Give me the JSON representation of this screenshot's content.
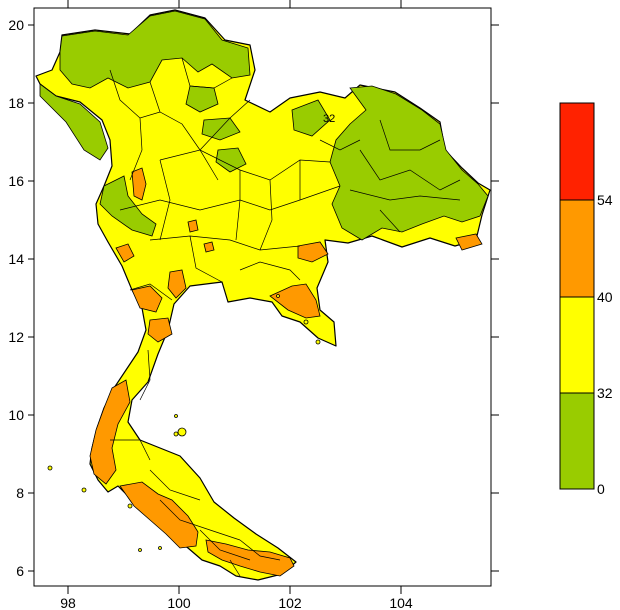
{
  "map": {
    "x_ticks": [
      "98",
      "100",
      "102",
      "104"
    ],
    "y_ticks": [
      "20",
      "18",
      "16",
      "14",
      "12",
      "10",
      "8",
      "6"
    ],
    "contour_label": "32",
    "colors": {
      "green": "#99cc00",
      "yellow": "#ffff00",
      "orange": "#ff9900",
      "red": "#ff2200",
      "border": "#000000",
      "background": "#ffffff"
    }
  },
  "legend": {
    "ticks": [
      "54",
      "40",
      "32",
      "0"
    ],
    "bins": [
      {
        "from": 54,
        "to": null,
        "color": "#ff2200"
      },
      {
        "from": 40,
        "to": 54,
        "color": "#ff9900"
      },
      {
        "from": 32,
        "to": 40,
        "color": "#ffff00"
      },
      {
        "from": 0,
        "to": 32,
        "color": "#99cc00"
      }
    ]
  }
}
